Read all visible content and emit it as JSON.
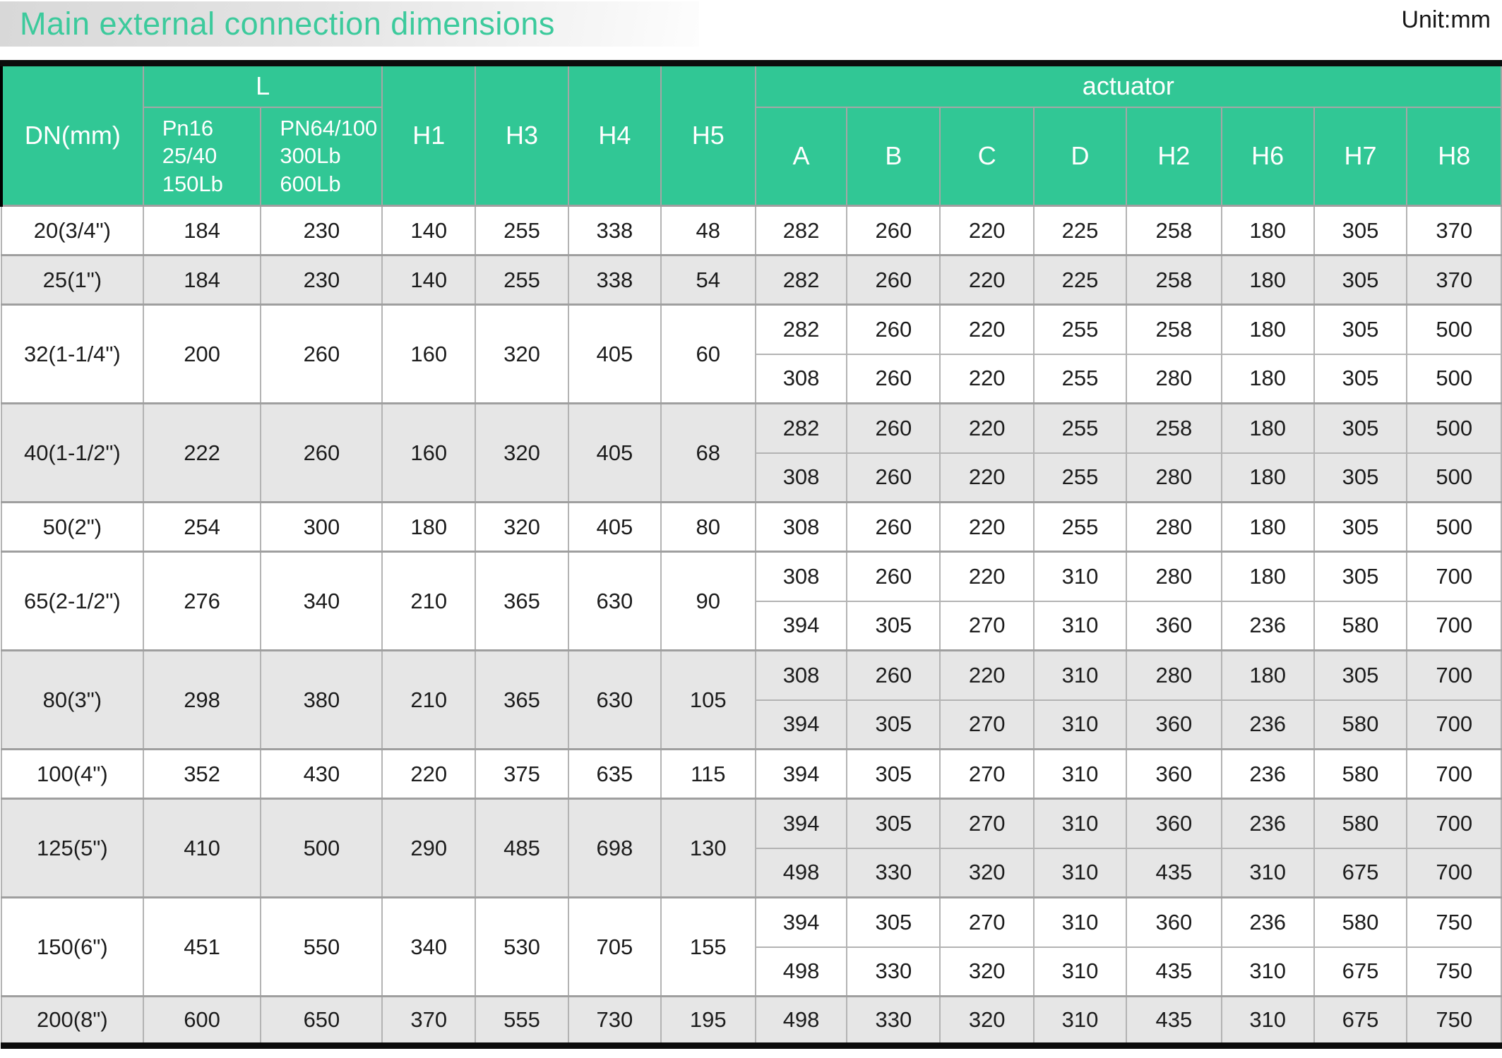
{
  "title": "Main external connection dimensions",
  "unit_label": "Unit:mm",
  "colors": {
    "header_green": "#31c795",
    "title_green": "#3cca9c",
    "row_grey": "#e6e6e6",
    "row_white": "#ffffff",
    "grid_line": "#b3b3b3",
    "outer_border": "#0c0c0c",
    "title_bar_grey": "#d8d8d8"
  },
  "header": {
    "dn": "DN(mm)",
    "l_group": "L",
    "l_sub1": "Pn16\n25/40\n150Lb",
    "l_sub2": "PN64/100\n300Lb\n600Lb",
    "h1": "H1",
    "h3": "H3",
    "h4": "H4",
    "h5": "H5",
    "actuator_group": "actuator",
    "actuator_cols": [
      "A",
      "B",
      "C",
      "D",
      "H2",
      "H6",
      "H7",
      "H8"
    ]
  },
  "rows": [
    {
      "dn": "20(3/4\")",
      "l1": "184",
      "l2": "230",
      "h1": "140",
      "h3": "255",
      "h4": "338",
      "h5": "48",
      "shade": "white",
      "actuators": [
        [
          "282",
          "260",
          "220",
          "225",
          "258",
          "180",
          "305",
          "370"
        ]
      ]
    },
    {
      "dn": "25(1\")",
      "l1": "184",
      "l2": "230",
      "h1": "140",
      "h3": "255",
      "h4": "338",
      "h5": "54",
      "shade": "grey",
      "actuators": [
        [
          "282",
          "260",
          "220",
          "225",
          "258",
          "180",
          "305",
          "370"
        ]
      ]
    },
    {
      "dn": "32(1-1/4\")",
      "l1": "200",
      "l2": "260",
      "h1": "160",
      "h3": "320",
      "h4": "405",
      "h5": "60",
      "shade": "white",
      "actuators": [
        [
          "282",
          "260",
          "220",
          "255",
          "258",
          "180",
          "305",
          "500"
        ],
        [
          "308",
          "260",
          "220",
          "255",
          "280",
          "180",
          "305",
          "500"
        ]
      ]
    },
    {
      "dn": "40(1-1/2\")",
      "l1": "222",
      "l2": "260",
      "h1": "160",
      "h3": "320",
      "h4": "405",
      "h5": "68",
      "shade": "grey",
      "actuators": [
        [
          "282",
          "260",
          "220",
          "255",
          "258",
          "180",
          "305",
          "500"
        ],
        [
          "308",
          "260",
          "220",
          "255",
          "280",
          "180",
          "305",
          "500"
        ]
      ]
    },
    {
      "dn": "50(2\")",
      "l1": "254",
      "l2": "300",
      "h1": "180",
      "h3": "320",
      "h4": "405",
      "h5": "80",
      "shade": "white",
      "actuators": [
        [
          "308",
          "260",
          "220",
          "255",
          "280",
          "180",
          "305",
          "500"
        ]
      ]
    },
    {
      "dn": "65(2-1/2\")",
      "l1": "276",
      "l2": "340",
      "h1": "210",
      "h3": "365",
      "h4": "630",
      "h5": "90",
      "shade": "white",
      "actuators": [
        [
          "308",
          "260",
          "220",
          "310",
          "280",
          "180",
          "305",
          "700"
        ],
        [
          "394",
          "305",
          "270",
          "310",
          "360",
          "236",
          "580",
          "700"
        ]
      ]
    },
    {
      "dn": "80(3\")",
      "l1": "298",
      "l2": "380",
      "h1": "210",
      "h3": "365",
      "h4": "630",
      "h5": "105",
      "shade": "grey",
      "actuators": [
        [
          "308",
          "260",
          "220",
          "310",
          "280",
          "180",
          "305",
          "700"
        ],
        [
          "394",
          "305",
          "270",
          "310",
          "360",
          "236",
          "580",
          "700"
        ]
      ]
    },
    {
      "dn": "100(4\")",
      "l1": "352",
      "l2": "430",
      "h1": "220",
      "h3": "375",
      "h4": "635",
      "h5": "115",
      "shade": "white",
      "actuators": [
        [
          "394",
          "305",
          "270",
          "310",
          "360",
          "236",
          "580",
          "700"
        ]
      ]
    },
    {
      "dn": "125(5\")",
      "l1": "410",
      "l2": "500",
      "h1": "290",
      "h3": "485",
      "h4": "698",
      "h5": "130",
      "shade": "grey",
      "actuators": [
        [
          "394",
          "305",
          "270",
          "310",
          "360",
          "236",
          "580",
          "700"
        ],
        [
          "498",
          "330",
          "320",
          "310",
          "435",
          "310",
          "675",
          "700"
        ]
      ]
    },
    {
      "dn": "150(6\")",
      "l1": "451",
      "l2": "550",
      "h1": "340",
      "h3": "530",
      "h4": "705",
      "h5": "155",
      "shade": "white",
      "actuators": [
        [
          "394",
          "305",
          "270",
          "310",
          "360",
          "236",
          "580",
          "750"
        ],
        [
          "498",
          "330",
          "320",
          "310",
          "435",
          "310",
          "675",
          "750"
        ]
      ]
    },
    {
      "dn": "200(8\")",
      "l1": "600",
      "l2": "650",
      "h1": "370",
      "h3": "555",
      "h4": "730",
      "h5": "195",
      "shade": "grey",
      "actuators": [
        [
          "498",
          "330",
          "320",
          "310",
          "435",
          "310",
          "675",
          "750"
        ]
      ]
    }
  ]
}
